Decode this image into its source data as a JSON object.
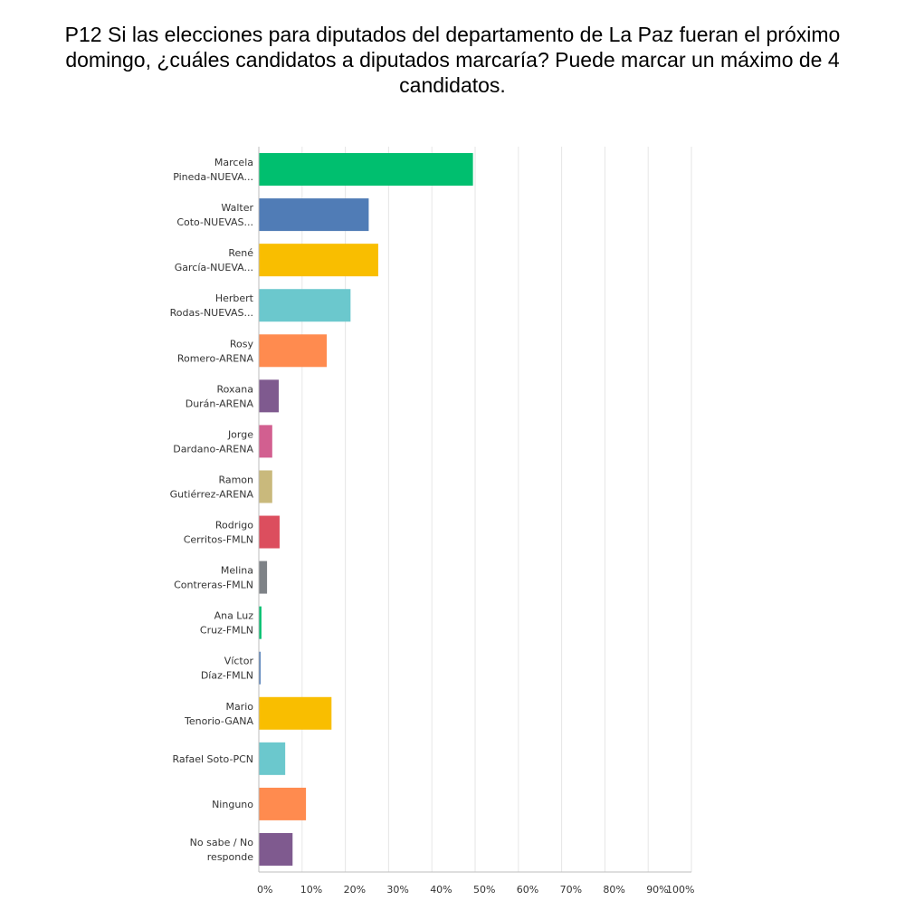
{
  "chart_data": {
    "type": "bar",
    "orientation": "horizontal",
    "title": "P12 Si las elecciones para diputados del departamento de La Paz fueran el próximo domingo, ¿cuáles candidatos a diputados marcaría? Puede marcar un máximo de 4 candidatos.",
    "xlabel": "",
    "ylabel": "",
    "categories": [
      [
        "Marcela",
        "Pineda-NUEVA..."
      ],
      [
        "Walter",
        "Coto-NUEVAS..."
      ],
      [
        "René",
        "García-NUEVA..."
      ],
      [
        "Herbert",
        "Rodas-NUEVAS..."
      ],
      [
        "Rosy",
        "Romero-ARENA"
      ],
      [
        "Roxana",
        "Durán-ARENA"
      ],
      [
        "Jorge",
        "Dardano-ARENA"
      ],
      [
        "Ramon",
        "Gutiérrez-ARENA"
      ],
      [
        "Rodrigo",
        "Cerritos-FMLN"
      ],
      [
        "Melina",
        "Contreras-FMLN"
      ],
      [
        "Ana Luz",
        "Cruz-FMLN"
      ],
      [
        "Víctor",
        "Díaz-FMLN"
      ],
      [
        "Mario",
        "Tenorio-GANA"
      ],
      [
        "Rafael Soto-PCN"
      ],
      [
        "Ninguno"
      ],
      [
        "No sabe / No",
        "responde"
      ]
    ],
    "values": [
      49.5,
      25.4,
      27.6,
      21.2,
      15.7,
      4.6,
      3.1,
      3.1,
      4.8,
      1.9,
      0.6,
      0.4,
      16.8,
      6.1,
      10.9,
      7.8
    ],
    "colors": [
      "#00bf6f",
      "#507cb6",
      "#f9be00",
      "#6bc8cd",
      "#ff8b4f",
      "#7f5a8f",
      "#d25f90",
      "#c9b97c",
      "#dc4e5e",
      "#7e8287",
      "#00bf6f",
      "#507cb6",
      "#f9be00",
      "#6bc8cd",
      "#ff8b4f",
      "#7f5a8f"
    ],
    "xlim": [
      0,
      100
    ],
    "x_ticks": [
      "0%",
      "10%",
      "20%",
      "30%",
      "40%",
      "50%",
      "60%",
      "70%",
      "80%",
      "90%",
      "100%"
    ],
    "grid": true,
    "legend": "none"
  }
}
